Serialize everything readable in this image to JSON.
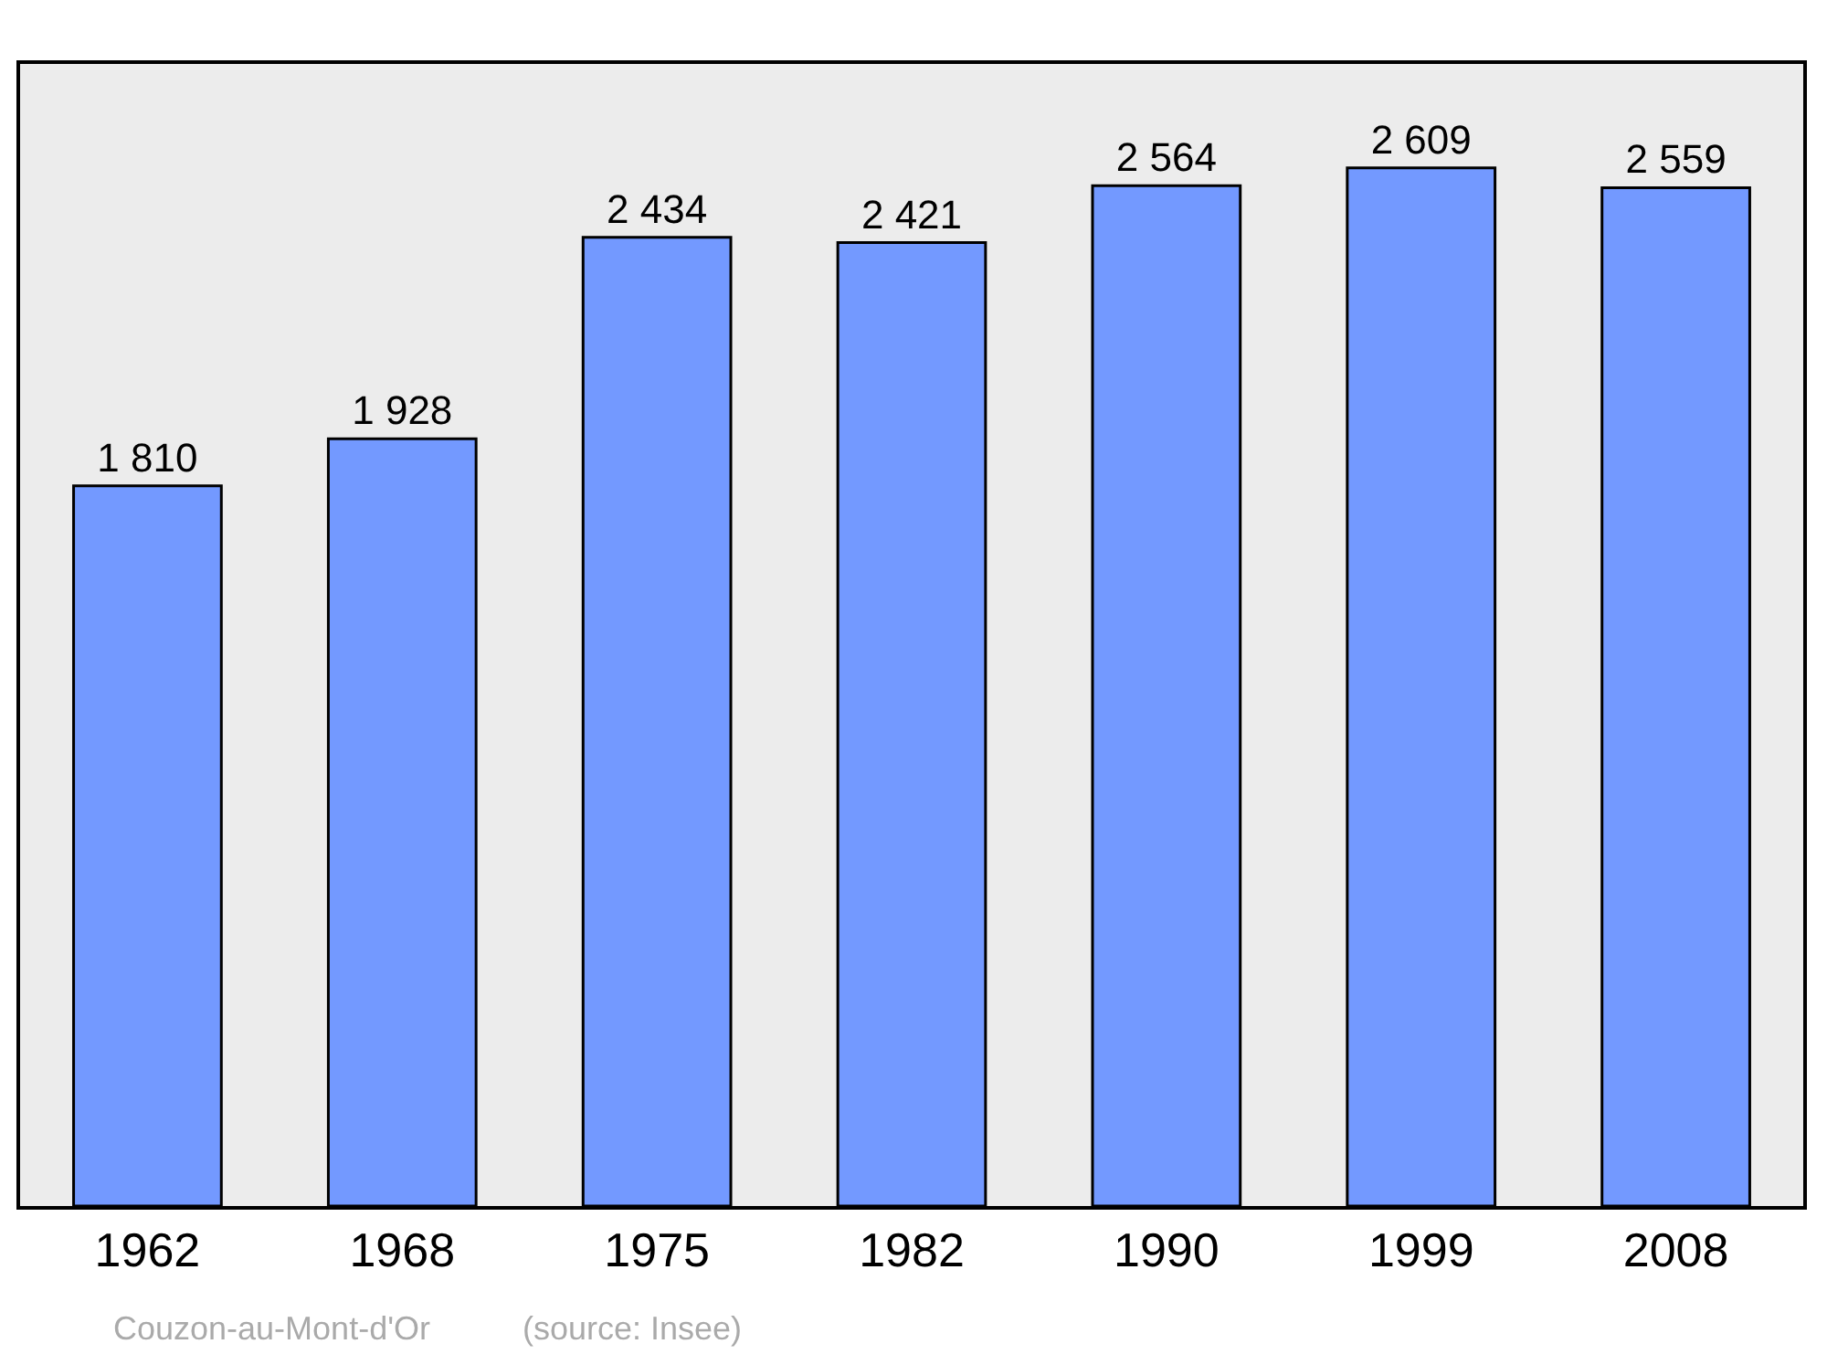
{
  "chart_data": {
    "type": "bar",
    "categories": [
      "1962",
      "1968",
      "1975",
      "1982",
      "1990",
      "1999",
      "2008"
    ],
    "values": [
      1810,
      1928,
      2434,
      2421,
      2564,
      2609,
      2559
    ],
    "value_labels": [
      "1 810",
      "1 928",
      "2 434",
      "2 421",
      "2 564",
      "2 609",
      "2 559"
    ],
    "color": "#7399ff",
    "tick_labels": "x",
    "grid": false,
    "legend": false,
    "annotations": [
      "Couzon-au-Mont-d'Or",
      "(source: Insee)"
    ]
  }
}
